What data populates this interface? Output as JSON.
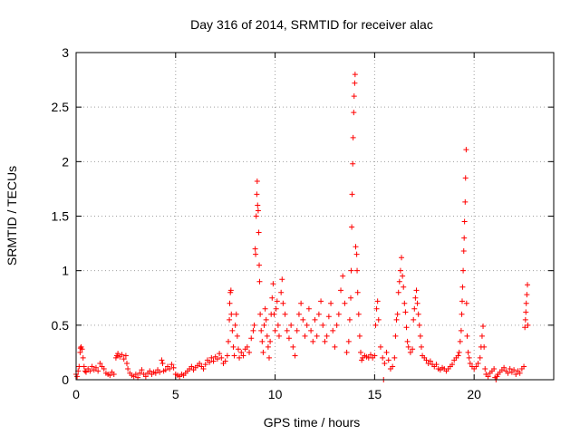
{
  "chart_data": {
    "type": "scatter",
    "title": "Day 316 of 2014, SRMTID for receiver alac",
    "xlabel": "GPS time / hours",
    "ylabel": "SRMTID / TECUs",
    "xlim": [
      0,
      24
    ],
    "ylim": [
      0,
      3
    ],
    "xticks": [
      0,
      5,
      10,
      15,
      20
    ],
    "xtick_labels": [
      "0",
      "5",
      "10",
      "15",
      "20"
    ],
    "yticks": [
      0,
      0.5,
      1,
      1.5,
      2,
      2.5,
      3
    ],
    "ytick_labels": [
      "0",
      "0.5",
      "1",
      "1.5",
      "2",
      "2.5",
      "3"
    ],
    "grid": true,
    "marker": "+",
    "color": "#ff0000",
    "series": [
      {
        "name": "SRMTID",
        "points": [
          [
            0.0,
            0.05
          ],
          [
            0.05,
            0.03
          ],
          [
            0.1,
            0.08
          ],
          [
            0.15,
            0.12
          ],
          [
            0.2,
            0.25
          ],
          [
            0.22,
            0.29
          ],
          [
            0.25,
            0.3
          ],
          [
            0.3,
            0.28
          ],
          [
            0.35,
            0.2
          ],
          [
            0.4,
            0.12
          ],
          [
            0.45,
            0.08
          ],
          [
            0.5,
            0.07
          ],
          [
            0.6,
            0.1
          ],
          [
            0.7,
            0.08
          ],
          [
            0.8,
            0.12
          ],
          [
            0.9,
            0.09
          ],
          [
            1.0,
            0.11
          ],
          [
            1.1,
            0.08
          ],
          [
            1.2,
            0.15
          ],
          [
            1.3,
            0.12
          ],
          [
            1.4,
            0.1
          ],
          [
            1.5,
            0.06
          ],
          [
            1.6,
            0.05
          ],
          [
            1.7,
            0.04
          ],
          [
            1.8,
            0.07
          ],
          [
            1.9,
            0.05
          ],
          [
            2.0,
            0.2
          ],
          [
            2.05,
            0.22
          ],
          [
            2.1,
            0.24
          ],
          [
            2.2,
            0.21
          ],
          [
            2.3,
            0.23
          ],
          [
            2.4,
            0.19
          ],
          [
            2.5,
            0.22
          ],
          [
            2.55,
            0.15
          ],
          [
            2.6,
            0.1
          ],
          [
            2.7,
            0.06
          ],
          [
            2.8,
            0.04
          ],
          [
            2.9,
            0.03
          ],
          [
            3.0,
            0.05
          ],
          [
            3.1,
            0.02
          ],
          [
            3.2,
            0.06
          ],
          [
            3.3,
            0.09
          ],
          [
            3.4,
            0.05
          ],
          [
            3.5,
            0.03
          ],
          [
            3.6,
            0.06
          ],
          [
            3.7,
            0.08
          ],
          [
            3.8,
            0.05
          ],
          [
            3.9,
            0.07
          ],
          [
            4.0,
            0.06
          ],
          [
            4.1,
            0.09
          ],
          [
            4.2,
            0.07
          ],
          [
            4.3,
            0.18
          ],
          [
            4.35,
            0.15
          ],
          [
            4.4,
            0.08
          ],
          [
            4.5,
            0.09
          ],
          [
            4.6,
            0.12
          ],
          [
            4.7,
            0.1
          ],
          [
            4.8,
            0.14
          ],
          [
            4.9,
            0.11
          ],
          [
            5.0,
            0.05
          ],
          [
            5.1,
            0.04
          ],
          [
            5.2,
            0.03
          ],
          [
            5.3,
            0.05
          ],
          [
            5.4,
            0.04
          ],
          [
            5.5,
            0.06
          ],
          [
            5.6,
            0.08
          ],
          [
            5.7,
            0.1
          ],
          [
            5.8,
            0.12
          ],
          [
            5.9,
            0.09
          ],
          [
            6.0,
            0.11
          ],
          [
            6.1,
            0.13
          ],
          [
            6.2,
            0.15
          ],
          [
            6.3,
            0.12
          ],
          [
            6.4,
            0.1
          ],
          [
            6.5,
            0.14
          ],
          [
            6.6,
            0.18
          ],
          [
            6.7,
            0.16
          ],
          [
            6.8,
            0.2
          ],
          [
            6.9,
            0.17
          ],
          [
            7.0,
            0.21
          ],
          [
            7.1,
            0.19
          ],
          [
            7.2,
            0.24
          ],
          [
            7.3,
            0.2
          ],
          [
            7.4,
            0.15
          ],
          [
            7.5,
            0.17
          ],
          [
            7.6,
            0.22
          ],
          [
            7.65,
            0.35
          ],
          [
            7.7,
            0.55
          ],
          [
            7.72,
            0.7
          ],
          [
            7.75,
            0.8
          ],
          [
            7.78,
            0.82
          ],
          [
            7.8,
            0.6
          ],
          [
            7.85,
            0.45
          ],
          [
            7.9,
            0.3
          ],
          [
            7.95,
            0.22
          ],
          [
            8.0,
            0.5
          ],
          [
            8.05,
            0.6
          ],
          [
            8.1,
            0.4
          ],
          [
            8.15,
            0.28
          ],
          [
            8.2,
            0.2
          ],
          [
            8.3,
            0.25
          ],
          [
            8.4,
            0.22
          ],
          [
            8.5,
            0.28
          ],
          [
            8.6,
            0.3
          ],
          [
            8.7,
            0.25
          ],
          [
            8.8,
            0.38
          ],
          [
            8.9,
            0.45
          ],
          [
            8.95,
            0.5
          ],
          [
            9.0,
            1.2
          ],
          [
            9.02,
            1.15
          ],
          [
            9.05,
            1.5
          ],
          [
            9.08,
            1.7
          ],
          [
            9.1,
            1.82
          ],
          [
            9.12,
            1.6
          ],
          [
            9.15,
            1.55
          ],
          [
            9.18,
            1.35
          ],
          [
            9.2,
            1.05
          ],
          [
            9.22,
            0.9
          ],
          [
            9.25,
            0.6
          ],
          [
            9.3,
            0.45
          ],
          [
            9.35,
            0.35
          ],
          [
            9.4,
            0.25
          ],
          [
            9.45,
            0.5
          ],
          [
            9.5,
            0.65
          ],
          [
            9.55,
            0.55
          ],
          [
            9.6,
            0.4
          ],
          [
            9.65,
            0.3
          ],
          [
            9.7,
            0.2
          ],
          [
            9.75,
            0.35
          ],
          [
            9.8,
            0.6
          ],
          [
            9.85,
            0.75
          ],
          [
            9.9,
            0.88
          ],
          [
            9.95,
            0.6
          ],
          [
            10.0,
            0.45
          ],
          [
            10.05,
            0.65
          ],
          [
            10.1,
            0.72
          ],
          [
            10.15,
            0.5
          ],
          [
            10.2,
            0.4
          ],
          [
            10.3,
            0.8
          ],
          [
            10.35,
            0.92
          ],
          [
            10.4,
            0.7
          ],
          [
            10.5,
            0.6
          ],
          [
            10.6,
            0.45
          ],
          [
            10.7,
            0.38
          ],
          [
            10.8,
            0.5
          ],
          [
            10.9,
            0.3
          ],
          [
            11.0,
            0.22
          ],
          [
            11.1,
            0.45
          ],
          [
            11.2,
            0.6
          ],
          [
            11.3,
            0.7
          ],
          [
            11.4,
            0.55
          ],
          [
            11.5,
            0.4
          ],
          [
            11.6,
            0.5
          ],
          [
            11.7,
            0.65
          ],
          [
            11.8,
            0.45
          ],
          [
            11.9,
            0.35
          ],
          [
            12.0,
            0.55
          ],
          [
            12.1,
            0.4
          ],
          [
            12.2,
            0.6
          ],
          [
            12.3,
            0.72
          ],
          [
            12.4,
            0.5
          ],
          [
            12.5,
            0.35
          ],
          [
            12.6,
            0.4
          ],
          [
            12.7,
            0.58
          ],
          [
            12.8,
            0.7
          ],
          [
            12.9,
            0.45
          ],
          [
            13.0,
            0.3
          ],
          [
            13.1,
            0.5
          ],
          [
            13.2,
            0.6
          ],
          [
            13.3,
            0.82
          ],
          [
            13.4,
            0.95
          ],
          [
            13.5,
            0.7
          ],
          [
            13.6,
            0.25
          ],
          [
            13.7,
            0.35
          ],
          [
            13.75,
            0.55
          ],
          [
            13.8,
            0.75
          ],
          [
            13.82,
            1.0
          ],
          [
            13.85,
            1.4
          ],
          [
            13.87,
            1.7
          ],
          [
            13.9,
            1.98
          ],
          [
            13.92,
            2.22
          ],
          [
            13.95,
            2.45
          ],
          [
            13.97,
            2.6
          ],
          [
            14.0,
            2.72
          ],
          [
            14.02,
            2.8
          ],
          [
            14.05,
            1.22
          ],
          [
            14.1,
            1.15
          ],
          [
            14.12,
            1.0
          ],
          [
            14.15,
            0.8
          ],
          [
            14.2,
            0.6
          ],
          [
            14.25,
            0.4
          ],
          [
            14.3,
            0.25
          ],
          [
            14.35,
            0.18
          ],
          [
            14.4,
            0.2
          ],
          [
            14.5,
            0.22
          ],
          [
            14.6,
            0.21
          ],
          [
            14.7,
            0.2
          ],
          [
            14.8,
            0.23
          ],
          [
            14.9,
            0.2
          ],
          [
            15.0,
            0.22
          ],
          [
            15.05,
            0.5
          ],
          [
            15.1,
            0.65
          ],
          [
            15.15,
            0.72
          ],
          [
            15.2,
            0.55
          ],
          [
            15.3,
            0.3
          ],
          [
            15.4,
            0.2
          ],
          [
            15.45,
            0.0
          ],
          [
            15.5,
            0.15
          ],
          [
            15.6,
            0.25
          ],
          [
            15.7,
            0.18
          ],
          [
            15.8,
            0.1
          ],
          [
            15.9,
            0.12
          ],
          [
            16.0,
            0.2
          ],
          [
            16.05,
            0.4
          ],
          [
            16.1,
            0.55
          ],
          [
            16.15,
            0.6
          ],
          [
            16.2,
            0.8
          ],
          [
            16.25,
            0.9
          ],
          [
            16.3,
            1.0
          ],
          [
            16.35,
            1.12
          ],
          [
            16.4,
            0.95
          ],
          [
            16.45,
            0.85
          ],
          [
            16.5,
            0.7
          ],
          [
            16.55,
            0.62
          ],
          [
            16.6,
            0.48
          ],
          [
            16.65,
            0.35
          ],
          [
            16.7,
            0.3
          ],
          [
            16.8,
            0.25
          ],
          [
            16.9,
            0.28
          ],
          [
            16.95,
            0.55
          ],
          [
            17.0,
            0.65
          ],
          [
            17.05,
            0.75
          ],
          [
            17.1,
            0.82
          ],
          [
            17.15,
            0.7
          ],
          [
            17.2,
            0.6
          ],
          [
            17.25,
            0.5
          ],
          [
            17.3,
            0.4
          ],
          [
            17.35,
            0.3
          ],
          [
            17.4,
            0.22
          ],
          [
            17.5,
            0.2
          ],
          [
            17.6,
            0.18
          ],
          [
            17.7,
            0.15
          ],
          [
            17.8,
            0.17
          ],
          [
            17.9,
            0.14
          ],
          [
            18.0,
            0.12
          ],
          [
            18.1,
            0.14
          ],
          [
            18.2,
            0.1
          ],
          [
            18.3,
            0.09
          ],
          [
            18.4,
            0.11
          ],
          [
            18.5,
            0.1
          ],
          [
            18.6,
            0.08
          ],
          [
            18.7,
            0.1
          ],
          [
            18.8,
            0.12
          ],
          [
            18.9,
            0.14
          ],
          [
            19.0,
            0.18
          ],
          [
            19.1,
            0.2
          ],
          [
            19.2,
            0.22
          ],
          [
            19.25,
            0.25
          ],
          [
            19.3,
            0.35
          ],
          [
            19.35,
            0.45
          ],
          [
            19.38,
            0.6
          ],
          [
            19.4,
            0.72
          ],
          [
            19.42,
            0.85
          ],
          [
            19.45,
            1.0
          ],
          [
            19.48,
            1.18
          ],
          [
            19.5,
            1.3
          ],
          [
            19.52,
            1.45
          ],
          [
            19.55,
            1.63
          ],
          [
            19.57,
            1.85
          ],
          [
            19.6,
            2.11
          ],
          [
            19.62,
            0.7
          ],
          [
            19.65,
            0.4
          ],
          [
            19.7,
            0.25
          ],
          [
            19.75,
            0.2
          ],
          [
            19.8,
            0.15
          ],
          [
            19.9,
            0.12
          ],
          [
            20.0,
            0.1
          ],
          [
            20.1,
            0.12
          ],
          [
            20.2,
            0.15
          ],
          [
            20.3,
            0.2
          ],
          [
            20.35,
            0.3
          ],
          [
            20.4,
            0.4
          ],
          [
            20.45,
            0.49
          ],
          [
            20.5,
            0.3
          ],
          [
            20.55,
            0.1
          ],
          [
            20.6,
            0.05
          ],
          [
            20.7,
            0.03
          ],
          [
            20.8,
            0.06
          ],
          [
            20.9,
            0.08
          ],
          [
            21.0,
            0.1
          ],
          [
            21.05,
            0.02
          ],
          [
            21.1,
            0.0
          ],
          [
            21.15,
            0.03
          ],
          [
            21.2,
            0.05
          ],
          [
            21.3,
            0.07
          ],
          [
            21.4,
            0.09
          ],
          [
            21.5,
            0.11
          ],
          [
            21.6,
            0.08
          ],
          [
            21.7,
            0.06
          ],
          [
            21.8,
            0.1
          ],
          [
            21.9,
            0.07
          ],
          [
            22.0,
            0.09
          ],
          [
            22.1,
            0.05
          ],
          [
            22.2,
            0.08
          ],
          [
            22.3,
            0.06
          ],
          [
            22.4,
            0.1
          ],
          [
            22.5,
            0.12
          ],
          [
            22.55,
            0.48
          ],
          [
            22.58,
            0.55
          ],
          [
            22.6,
            0.62
          ],
          [
            22.62,
            0.7
          ],
          [
            22.65,
            0.78
          ],
          [
            22.68,
            0.87
          ],
          [
            22.7,
            0.5
          ]
        ]
      }
    ]
  }
}
